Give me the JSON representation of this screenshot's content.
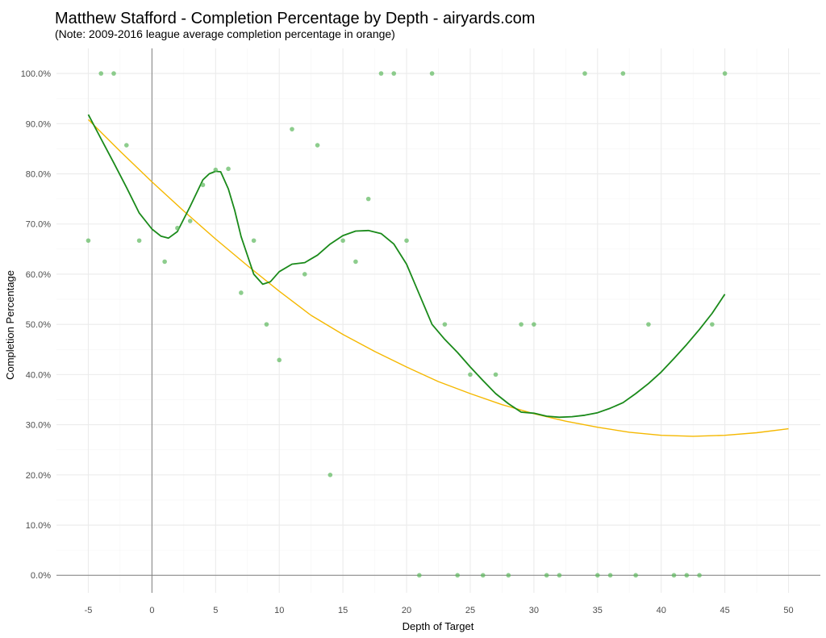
{
  "chart_data": {
    "type": "scatter",
    "title": "Matthew Stafford - Completion Percentage by Depth - airyards.com",
    "subtitle": "(Note: 2009-2016 league average completion percentage in orange)",
    "xlabel": "Depth of Target",
    "ylabel": "Completion Percentage",
    "xlim": [
      -7.5,
      52.5
    ],
    "ylim": [
      -0.035,
      1.05
    ],
    "x_ticks": [
      -5,
      0,
      5,
      10,
      15,
      20,
      25,
      30,
      35,
      40,
      45,
      50
    ],
    "x_tick_labels": [
      "-5",
      "0",
      "5",
      "10",
      "15",
      "20",
      "25",
      "30",
      "35",
      "40",
      "45",
      "50"
    ],
    "y_ticks": [
      0,
      0.1,
      0.2,
      0.3,
      0.4,
      0.5,
      0.6,
      0.7,
      0.8,
      0.9,
      1.0
    ],
    "y_tick_labels": [
      "0.0%",
      "10.0%",
      "20.0%",
      "30.0%",
      "40.0%",
      "50.0%",
      "60.0%",
      "70.0%",
      "80.0%",
      "90.0%",
      "100.0%"
    ],
    "grid": true,
    "colors": {
      "points": "#5cb85c",
      "smooth": "#1a8a1a",
      "league": "#f5b800",
      "grid_major": "#ebebeb",
      "grid_minor": "#f5f5f5",
      "zero_lines": "#808080"
    },
    "series": [
      {
        "kind": "points",
        "x": [
          -5,
          -4,
          -3,
          -2,
          -1,
          1,
          2,
          3,
          4,
          5,
          6,
          7,
          8,
          9,
          10,
          11,
          12,
          13,
          14,
          15,
          16,
          17,
          18,
          19,
          20,
          21,
          22,
          23,
          24,
          25,
          26,
          27,
          28,
          29,
          30,
          31,
          32,
          34,
          35,
          36,
          37,
          38,
          39,
          41,
          42,
          43,
          44,
          45
        ],
        "y": [
          0.667,
          1.0,
          1.0,
          0.857,
          0.667,
          0.625,
          0.692,
          0.706,
          0.778,
          0.808,
          0.81,
          0.563,
          0.667,
          0.5,
          0.429,
          0.889,
          0.6,
          0.857,
          0.2,
          0.667,
          0.625,
          0.75,
          1.0,
          1.0,
          0.667,
          0.0,
          1.0,
          0.5,
          0.0,
          0.4,
          0.0,
          0.4,
          0.0,
          0.5,
          0.5,
          0.0,
          0.0,
          1.0,
          0.0,
          0.0,
          1.0,
          0.0,
          0.5,
          0.0,
          0.0,
          0.0,
          0.5,
          1.0
        ]
      },
      {
        "kind": "smooth",
        "x": [
          -5,
          -4,
          -3,
          -2,
          -1,
          0,
          0.7,
          1.3,
          2,
          3,
          4,
          4.5,
          5,
          5.4,
          6,
          6.5,
          7,
          8,
          8.7,
          9.3,
          10,
          11,
          12,
          13,
          14,
          15,
          16,
          17,
          18,
          19,
          20,
          21,
          22,
          23,
          24,
          25,
          26,
          27,
          28,
          29,
          30,
          31,
          32,
          33,
          34,
          35,
          36,
          37,
          38,
          39,
          40,
          41,
          42,
          43,
          44,
          45
        ],
        "y": [
          0.918,
          0.87,
          0.822,
          0.773,
          0.722,
          0.69,
          0.676,
          0.672,
          0.685,
          0.735,
          0.788,
          0.8,
          0.805,
          0.804,
          0.77,
          0.727,
          0.675,
          0.6,
          0.58,
          0.585,
          0.605,
          0.62,
          0.623,
          0.638,
          0.66,
          0.677,
          0.686,
          0.687,
          0.681,
          0.66,
          0.62,
          0.56,
          0.5,
          0.47,
          0.444,
          0.415,
          0.388,
          0.362,
          0.342,
          0.325,
          0.323,
          0.317,
          0.315,
          0.316,
          0.319,
          0.324,
          0.333,
          0.344,
          0.362,
          0.382,
          0.405,
          0.432,
          0.46,
          0.49,
          0.522,
          0.56
        ]
      },
      {
        "kind": "league",
        "x": [
          -5,
          -2.5,
          0,
          2.5,
          5,
          7.5,
          10,
          12.5,
          15,
          17.5,
          20,
          22.5,
          25,
          27.5,
          30,
          32.5,
          35,
          37.5,
          40,
          42.5,
          45,
          47.5,
          50
        ],
        "y": [
          0.908,
          0.845,
          0.784,
          0.726,
          0.67,
          0.617,
          0.566,
          0.518,
          0.48,
          0.446,
          0.415,
          0.386,
          0.362,
          0.34,
          0.322,
          0.307,
          0.295,
          0.285,
          0.279,
          0.277,
          0.279,
          0.284,
          0.292
        ]
      }
    ]
  }
}
